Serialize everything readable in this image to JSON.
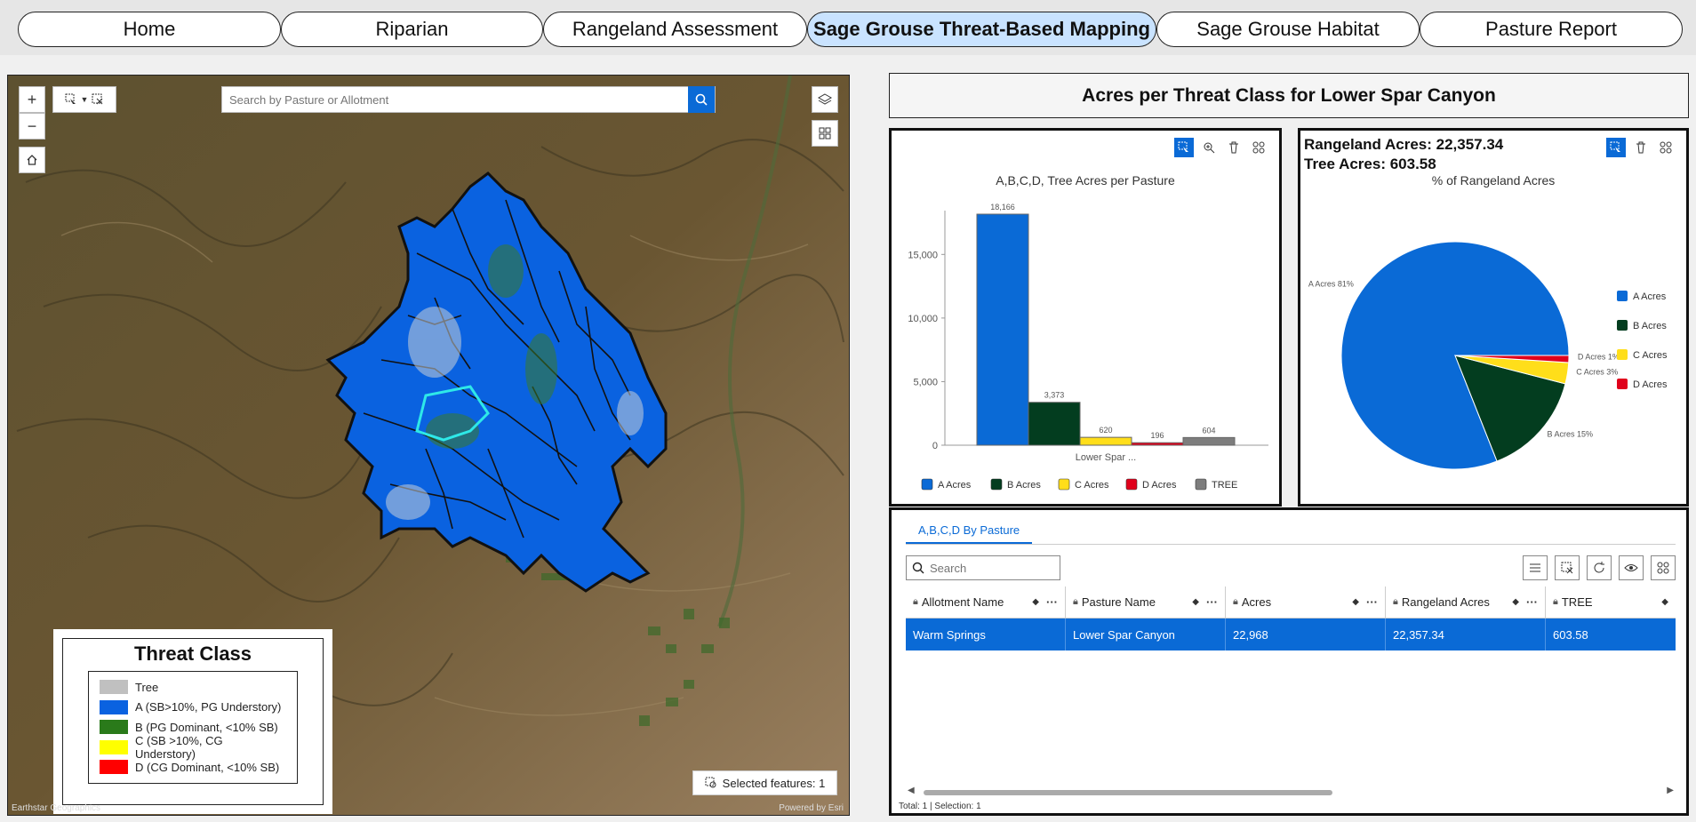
{
  "nav": {
    "tabs": [
      {
        "label": "Home",
        "active": false
      },
      {
        "label": "Riparian",
        "active": false
      },
      {
        "label": "Rangeland Assessment",
        "active": false
      },
      {
        "label": "Sage Grouse Threat-Based Mapping",
        "active": true
      },
      {
        "label": "Sage Grouse Habitat",
        "active": false
      },
      {
        "label": "Pasture Report",
        "active": false
      }
    ]
  },
  "map": {
    "search_placeholder": "Search by Pasture or Allotment",
    "zoom_in": "+",
    "zoom_out": "−",
    "legend": {
      "title": "Threat Class",
      "items": [
        {
          "label": "Tree",
          "color": "#c0c0c0"
        },
        {
          "label": "A (SB>10%, PG Understory)",
          "color": "#0a62e0"
        },
        {
          "label": "B (PG Dominant, <10% SB)",
          "color": "#2a7a1a"
        },
        {
          "label": "C (SB >10%, CG Understory)",
          "color": "#ffff00"
        },
        {
          "label": "D (CG Dominant, <10% SB)",
          "color": "#ff0000"
        }
      ]
    },
    "selected_features": "Selected features: 1",
    "attribution_left": "Earthstar Geographics",
    "attribution_right": "Powered by Esri"
  },
  "header": {
    "title": "Acres per Threat Class for  Lower Spar Canyon"
  },
  "bar_panel": {
    "title": "A,B,C,D, Tree Acres per Pasture",
    "category_label": "Lower Spar ...",
    "y_ticks": [
      "0",
      "5,000",
      "10,000",
      "15,000"
    ]
  },
  "pie_panel": {
    "rangeland_acres": "Rangeland Acres:  22,357.34",
    "tree_acres": "Tree Acres:  603.58",
    "title": "% of Rangeland Acres"
  },
  "table": {
    "tab_label": "A,B,C,D By Pasture",
    "search_placeholder": "Search",
    "columns": [
      "Allotment Name",
      "Pasture Name",
      "Acres",
      "Rangeland Acres",
      "TREE"
    ],
    "rows": [
      [
        "Warm Springs",
        "Lower Spar Canyon",
        "22,968",
        "22,357.34",
        "603.58"
      ]
    ],
    "footer": "Total: 1 | Selection: 1"
  },
  "chart_data": [
    {
      "type": "bar",
      "title": "A,B,C,D, Tree Acres per Pasture",
      "categories": [
        "Lower Spar ..."
      ],
      "series": [
        {
          "name": "A Acres",
          "values": [
            18166
          ],
          "label": "18,166",
          "color": "#0a6ad6"
        },
        {
          "name": "B Acres",
          "values": [
            3373
          ],
          "label": "3,373",
          "color": "#033d1f"
        },
        {
          "name": "C Acres",
          "values": [
            620
          ],
          "label": "620",
          "color": "#ffde1a"
        },
        {
          "name": "D Acres",
          "values": [
            196
          ],
          "label": "196",
          "color": "#e0001b"
        },
        {
          "name": "TREE",
          "values": [
            604
          ],
          "label": "604",
          "color": "#7d7d7d"
        }
      ],
      "ylim": [
        0,
        18166
      ],
      "legend": "bottom"
    },
    {
      "type": "pie",
      "title": "% of Rangeland Acres",
      "slices": [
        {
          "name": "A Acres",
          "label": "A Acres 81%",
          "value": 81,
          "color": "#0a6ad6"
        },
        {
          "name": "B Acres",
          "label": "B Acres 15%",
          "value": 15,
          "color": "#033d1f"
        },
        {
          "name": "C Acres",
          "label": "C Acres 3%",
          "value": 3,
          "color": "#ffde1a"
        },
        {
          "name": "D Acres",
          "label": "D Acres 1%",
          "value": 1,
          "color": "#e0001b"
        }
      ],
      "legend": "right"
    }
  ]
}
